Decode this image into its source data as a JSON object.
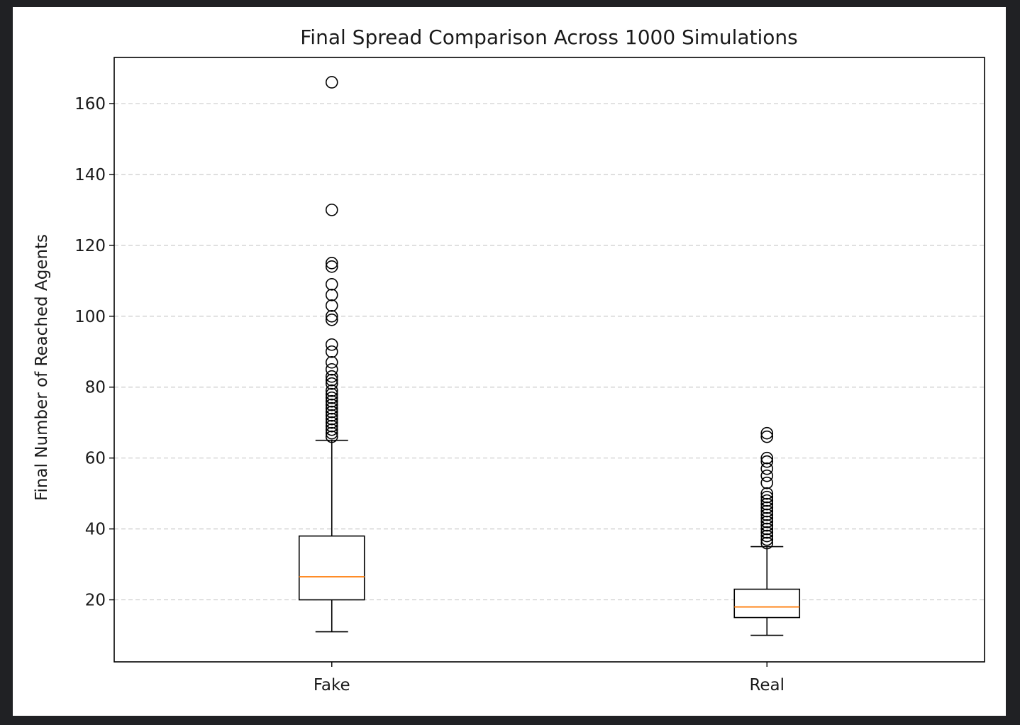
{
  "chart_data": {
    "type": "box",
    "title": "Final Spread Comparison Across 1000 Simulations",
    "xlabel": "",
    "ylabel": "Final Number of Reached Agents",
    "categories": [
      "Fake",
      "Real"
    ],
    "ylim": [
      2.5,
      173
    ],
    "yticks": [
      20,
      40,
      60,
      80,
      100,
      120,
      140,
      160
    ],
    "grid": "y-dashed",
    "boxes": [
      {
        "category": "Fake",
        "whisker_low": 11,
        "q1": 20,
        "median": 26.5,
        "q3": 38,
        "whisker_high": 65,
        "outliers": [
          166,
          130,
          115,
          114,
          109,
          106,
          103,
          100,
          99,
          92,
          90,
          87,
          85,
          83,
          82,
          81,
          79,
          78,
          77,
          76,
          75,
          74,
          73,
          72,
          71,
          70,
          69,
          68,
          67,
          66
        ]
      },
      {
        "category": "Real",
        "whisker_low": 10,
        "q1": 15,
        "median": 18,
        "q3": 23,
        "whisker_high": 35,
        "outliers": [
          67,
          66,
          60,
          59,
          57,
          55,
          53,
          50,
          49,
          48,
          47,
          46,
          45,
          44,
          43,
          42,
          41,
          40,
          39,
          38,
          37,
          36
        ]
      }
    ],
    "colors": {
      "box": "#000000",
      "median": "#ff7f0e",
      "grid": "#cccccc",
      "outlier_edge": "#000000"
    }
  }
}
